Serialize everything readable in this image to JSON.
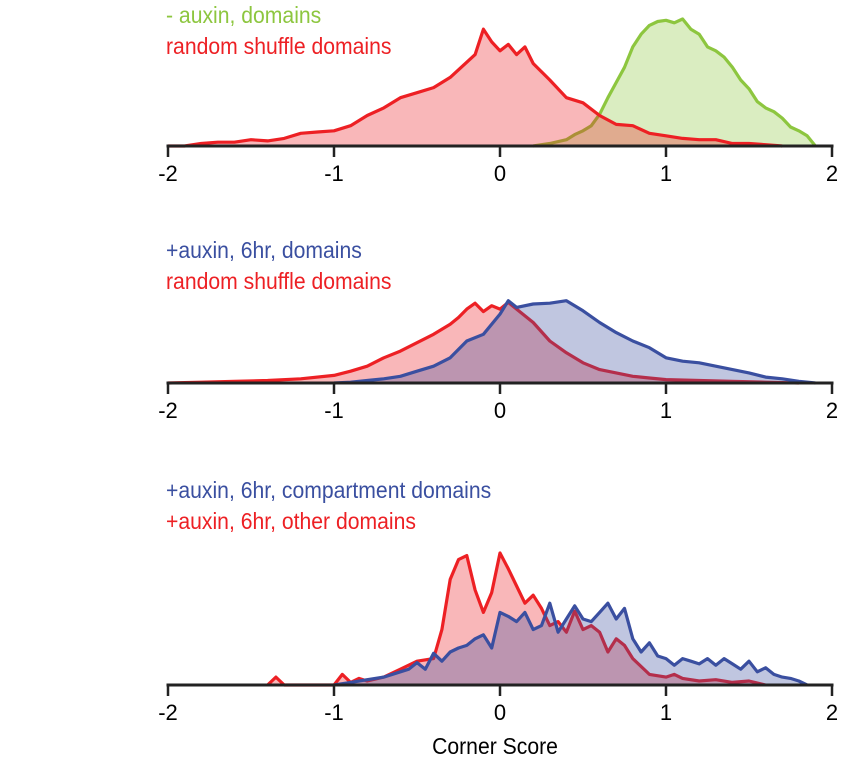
{
  "colors": {
    "green": "#8dc63f",
    "red": "#ed2024",
    "blue": "#3a4fa0",
    "axis": "#222222"
  },
  "xlabel": "Corner Score",
  "chart_data": [
    {
      "type": "area",
      "title": "",
      "xlim": [
        -2,
        2
      ],
      "xticks": [
        "-2",
        "-1",
        "0",
        "1",
        "2"
      ],
      "legend": [
        "- auxin, domains",
        "random shuffle domains"
      ],
      "series": [
        {
          "name": "- auxin, domains",
          "color": "#8dc63f",
          "x": [
            0.2,
            0.3,
            0.4,
            0.45,
            0.5,
            0.55,
            0.6,
            0.65,
            0.7,
            0.75,
            0.8,
            0.85,
            0.9,
            0.95,
            1.0,
            1.05,
            1.1,
            1.15,
            1.2,
            1.25,
            1.3,
            1.35,
            1.4,
            1.45,
            1.5,
            1.55,
            1.6,
            1.65,
            1.7,
            1.75,
            1.8,
            1.85,
            1.9
          ],
          "y": [
            0.0,
            0.02,
            0.05,
            0.09,
            0.12,
            0.16,
            0.25,
            0.38,
            0.5,
            0.62,
            0.78,
            0.88,
            0.95,
            0.98,
            0.99,
            0.97,
            1.0,
            0.92,
            0.88,
            0.78,
            0.75,
            0.7,
            0.62,
            0.52,
            0.45,
            0.35,
            0.3,
            0.27,
            0.22,
            0.15,
            0.12,
            0.08,
            0.0
          ]
        },
        {
          "name": "random shuffle domains",
          "color": "#ed2024",
          "x": [
            -2.0,
            -1.9,
            -1.8,
            -1.7,
            -1.6,
            -1.5,
            -1.4,
            -1.3,
            -1.2,
            -1.1,
            -1.0,
            -0.9,
            -0.8,
            -0.7,
            -0.6,
            -0.5,
            -0.4,
            -0.3,
            -0.25,
            -0.2,
            -0.15,
            -0.1,
            -0.05,
            0.0,
            0.05,
            0.1,
            0.15,
            0.2,
            0.3,
            0.4,
            0.5,
            0.6,
            0.7,
            0.8,
            0.9,
            1.0,
            1.1,
            1.2,
            1.3,
            1.4,
            1.5,
            1.6,
            1.7
          ],
          "y": [
            0.0,
            0.0,
            0.02,
            0.03,
            0.03,
            0.05,
            0.04,
            0.06,
            0.1,
            0.11,
            0.12,
            0.16,
            0.24,
            0.3,
            0.38,
            0.42,
            0.46,
            0.54,
            0.6,
            0.66,
            0.72,
            0.92,
            0.82,
            0.75,
            0.8,
            0.72,
            0.78,
            0.65,
            0.52,
            0.38,
            0.34,
            0.24,
            0.17,
            0.16,
            0.1,
            0.08,
            0.06,
            0.05,
            0.05,
            0.02,
            0.02,
            0.01,
            0.0
          ]
        }
      ]
    },
    {
      "type": "area",
      "title": "",
      "xlim": [
        -2,
        2
      ],
      "xticks": [
        "-2",
        "-1",
        "0",
        "1",
        "2"
      ],
      "legend": [
        "+auxin, 6hr, domains",
        "random shuffle domains"
      ],
      "series": [
        {
          "name": "random shuffle domains",
          "color": "#ed2024",
          "x": [
            -2.0,
            -1.8,
            -1.6,
            -1.4,
            -1.2,
            -1.0,
            -0.9,
            -0.8,
            -0.7,
            -0.6,
            -0.5,
            -0.4,
            -0.35,
            -0.3,
            -0.25,
            -0.2,
            -0.15,
            -0.1,
            -0.05,
            0.0,
            0.05,
            0.1,
            0.2,
            0.3,
            0.4,
            0.5,
            0.6,
            0.7,
            0.8,
            0.9,
            1.0,
            1.2,
            1.4,
            1.6,
            1.8
          ],
          "y": [
            0.0,
            0.01,
            0.02,
            0.03,
            0.05,
            0.09,
            0.14,
            0.2,
            0.3,
            0.38,
            0.48,
            0.58,
            0.64,
            0.7,
            0.78,
            0.88,
            0.95,
            0.85,
            0.92,
            0.88,
            0.96,
            0.88,
            0.72,
            0.5,
            0.36,
            0.24,
            0.16,
            0.12,
            0.08,
            0.06,
            0.04,
            0.03,
            0.02,
            0.01,
            0.0
          ]
        },
        {
          "name": "+auxin, 6hr, domains",
          "color": "#3a4fa0",
          "x": [
            -1.0,
            -0.9,
            -0.8,
            -0.7,
            -0.6,
            -0.5,
            -0.4,
            -0.3,
            -0.2,
            -0.1,
            0.0,
            0.05,
            0.1,
            0.2,
            0.3,
            0.4,
            0.5,
            0.6,
            0.7,
            0.8,
            0.9,
            1.0,
            1.1,
            1.2,
            1.3,
            1.4,
            1.5,
            1.6,
            1.7,
            1.8,
            1.9
          ],
          "y": [
            0.0,
            0.01,
            0.03,
            0.05,
            0.08,
            0.14,
            0.2,
            0.3,
            0.5,
            0.58,
            0.82,
            0.98,
            0.9,
            0.94,
            0.95,
            0.98,
            0.86,
            0.72,
            0.6,
            0.5,
            0.42,
            0.3,
            0.26,
            0.24,
            0.2,
            0.16,
            0.12,
            0.07,
            0.05,
            0.02,
            0.0
          ]
        }
      ]
    },
    {
      "type": "area",
      "title": "",
      "xlim": [
        -2,
        2
      ],
      "xticks": [
        "-2",
        "-1",
        "0",
        "1",
        "2"
      ],
      "legend": [
        "+auxin, 6hr,  compartment domains",
        "+auxin, 6hr, other domains"
      ],
      "series": [
        {
          "name": "+auxin, 6hr, other domains",
          "color": "#ed2024",
          "x": [
            -1.4,
            -1.35,
            -1.3,
            -1.0,
            -0.95,
            -0.9,
            -0.85,
            -0.8,
            -0.7,
            -0.6,
            -0.5,
            -0.4,
            -0.35,
            -0.3,
            -0.25,
            -0.2,
            -0.15,
            -0.1,
            -0.05,
            0.0,
            0.05,
            0.1,
            0.15,
            0.2,
            0.25,
            0.3,
            0.35,
            0.4,
            0.45,
            0.5,
            0.55,
            0.6,
            0.65,
            0.7,
            0.75,
            0.8,
            0.9,
            1.0,
            1.05,
            1.1,
            1.2,
            1.3,
            1.4,
            1.5,
            1.6
          ],
          "y": [
            0.0,
            0.06,
            0.0,
            0.0,
            0.08,
            0.02,
            0.05,
            0.03,
            0.06,
            0.12,
            0.18,
            0.2,
            0.42,
            0.8,
            0.95,
            0.98,
            0.72,
            0.55,
            0.7,
            1.0,
            0.88,
            0.75,
            0.62,
            0.68,
            0.58,
            0.45,
            0.48,
            0.4,
            0.56,
            0.42,
            0.45,
            0.4,
            0.25,
            0.35,
            0.3,
            0.2,
            0.08,
            0.06,
            0.08,
            0.05,
            0.03,
            0.04,
            0.02,
            0.03,
            0.0
          ]
        },
        {
          "name": "+auxin, 6hr,  compartment domains",
          "color": "#3a4fa0",
          "x": [
            -1.0,
            -0.9,
            -0.8,
            -0.7,
            -0.6,
            -0.55,
            -0.5,
            -0.45,
            -0.4,
            -0.35,
            -0.3,
            -0.25,
            -0.2,
            -0.15,
            -0.1,
            -0.05,
            0.0,
            0.05,
            0.1,
            0.15,
            0.2,
            0.25,
            0.3,
            0.35,
            0.4,
            0.45,
            0.5,
            0.55,
            0.6,
            0.65,
            0.7,
            0.75,
            0.8,
            0.85,
            0.9,
            0.95,
            1.0,
            1.05,
            1.1,
            1.15,
            1.2,
            1.25,
            1.3,
            1.35,
            1.4,
            1.45,
            1.5,
            1.55,
            1.6,
            1.65,
            1.7,
            1.75,
            1.8,
            1.85
          ],
          "y": [
            0.0,
            0.02,
            0.04,
            0.06,
            0.1,
            0.12,
            0.17,
            0.12,
            0.24,
            0.18,
            0.25,
            0.28,
            0.3,
            0.35,
            0.38,
            0.28,
            0.55,
            0.52,
            0.48,
            0.55,
            0.42,
            0.45,
            0.62,
            0.4,
            0.5,
            0.6,
            0.5,
            0.48,
            0.55,
            0.62,
            0.5,
            0.58,
            0.35,
            0.25,
            0.32,
            0.22,
            0.2,
            0.15,
            0.2,
            0.18,
            0.16,
            0.2,
            0.15,
            0.2,
            0.16,
            0.12,
            0.18,
            0.1,
            0.13,
            0.08,
            0.06,
            0.05,
            0.03,
            0.0
          ]
        }
      ]
    }
  ]
}
